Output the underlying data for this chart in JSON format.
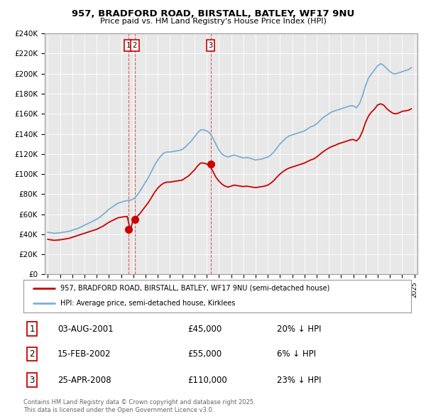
{
  "title": "957, BRADFORD ROAD, BIRSTALL, BATLEY, WF17 9NU",
  "subtitle": "Price paid vs. HM Land Registry's House Price Index (HPI)",
  "ylim": [
    0,
    240000
  ],
  "yticks": [
    0,
    20000,
    40000,
    60000,
    80000,
    100000,
    120000,
    140000,
    160000,
    180000,
    200000,
    220000,
    240000
  ],
  "ytick_labels": [
    "£0",
    "£20K",
    "£40K",
    "£60K",
    "£80K",
    "£100K",
    "£120K",
    "£140K",
    "£160K",
    "£180K",
    "£200K",
    "£220K",
    "£240K"
  ],
  "sale_dates_num": [
    2001.585,
    2002.12,
    2008.32
  ],
  "sale_prices": [
    45000,
    55000,
    110000
  ],
  "sale_labels": [
    "1",
    "2",
    "3"
  ],
  "legend_line1": "957, BRADFORD ROAD, BIRSTALL, BATLEY, WF17 9NU (semi-detached house)",
  "legend_line2": "HPI: Average price, semi-detached house, Kirklees",
  "table_data": [
    [
      "1",
      "03-AUG-2001",
      "£45,000",
      "20% ↓ HPI"
    ],
    [
      "2",
      "15-FEB-2002",
      "£55,000",
      "6% ↓ HPI"
    ],
    [
      "3",
      "25-APR-2008",
      "£110,000",
      "23% ↓ HPI"
    ]
  ],
  "footer": "Contains HM Land Registry data © Crown copyright and database right 2025.\nThis data is licensed under the Open Government Licence v3.0.",
  "red_color": "#cc0000",
  "blue_color": "#7ab0d4",
  "background_color": "#ffffff",
  "chart_bg": "#e8e8e8",
  "grid_color": "#ffffff",
  "hpi_x": [
    1995.0,
    1995.25,
    1995.5,
    1995.75,
    1996.0,
    1996.25,
    1996.5,
    1996.75,
    1997.0,
    1997.25,
    1997.5,
    1997.75,
    1998.0,
    1998.25,
    1998.5,
    1998.75,
    1999.0,
    1999.25,
    1999.5,
    1999.75,
    2000.0,
    2000.25,
    2000.5,
    2000.75,
    2001.0,
    2001.25,
    2001.5,
    2001.75,
    2002.0,
    2002.25,
    2002.5,
    2002.75,
    2003.0,
    2003.25,
    2003.5,
    2003.75,
    2004.0,
    2004.25,
    2004.5,
    2004.75,
    2005.0,
    2005.25,
    2005.5,
    2005.75,
    2006.0,
    2006.25,
    2006.5,
    2006.75,
    2007.0,
    2007.25,
    2007.5,
    2007.75,
    2008.0,
    2008.25,
    2008.5,
    2008.75,
    2009.0,
    2009.25,
    2009.5,
    2009.75,
    2010.0,
    2010.25,
    2010.5,
    2010.75,
    2011.0,
    2011.25,
    2011.5,
    2011.75,
    2012.0,
    2012.25,
    2012.5,
    2012.75,
    2013.0,
    2013.25,
    2013.5,
    2013.75,
    2014.0,
    2014.25,
    2014.5,
    2014.75,
    2015.0,
    2015.25,
    2015.5,
    2015.75,
    2016.0,
    2016.25,
    2016.5,
    2016.75,
    2017.0,
    2017.25,
    2017.5,
    2017.75,
    2018.0,
    2018.25,
    2018.5,
    2018.75,
    2019.0,
    2019.25,
    2019.5,
    2019.75,
    2020.0,
    2020.25,
    2020.5,
    2020.75,
    2021.0,
    2021.25,
    2021.5,
    2021.75,
    2022.0,
    2022.25,
    2022.5,
    2022.75,
    2023.0,
    2023.25,
    2023.5,
    2023.75,
    2024.0,
    2024.25,
    2024.5,
    2024.75
  ],
  "hpi_y": [
    42000,
    41500,
    41000,
    41200,
    41500,
    42000,
    42500,
    43000,
    44000,
    45000,
    46000,
    47500,
    49000,
    50500,
    52000,
    53500,
    55000,
    57000,
    59500,
    62000,
    65000,
    67000,
    69000,
    71000,
    72000,
    73000,
    73500,
    74000,
    75000,
    78000,
    82000,
    87000,
    92000,
    97000,
    103000,
    109000,
    114000,
    118000,
    121000,
    122000,
    122000,
    122500,
    123000,
    123500,
    124500,
    127000,
    130000,
    133000,
    137000,
    141000,
    144000,
    144000,
    143000,
    141000,
    136000,
    130000,
    124000,
    120000,
    118000,
    117000,
    118000,
    119000,
    118000,
    117000,
    116000,
    116500,
    116000,
    115000,
    114000,
    114500,
    115000,
    116000,
    117000,
    119000,
    122000,
    126000,
    130000,
    133000,
    136000,
    138000,
    139000,
    140000,
    141000,
    142000,
    143000,
    145000,
    147000,
    148000,
    150000,
    153000,
    156000,
    158000,
    160000,
    162000,
    163000,
    164000,
    165000,
    166000,
    167000,
    168000,
    168000,
    166000,
    170000,
    178000,
    188000,
    196000,
    200000,
    204000,
    208000,
    210000,
    208000,
    205000,
    202000,
    200000,
    200000,
    201000,
    202000,
    203000,
    204000,
    206000
  ],
  "red_x": [
    1995.0,
    1995.25,
    1995.5,
    1995.75,
    1996.0,
    1996.25,
    1996.5,
    1996.75,
    1997.0,
    1997.25,
    1997.5,
    1997.75,
    1998.0,
    1998.25,
    1998.5,
    1998.75,
    1999.0,
    1999.25,
    1999.5,
    1999.75,
    2000.0,
    2000.25,
    2000.5,
    2000.75,
    2001.0,
    2001.25,
    2001.5,
    2001.75,
    2002.0,
    2002.25,
    2002.5,
    2002.75,
    2003.0,
    2003.25,
    2003.5,
    2003.75,
    2004.0,
    2004.25,
    2004.5,
    2004.75,
    2005.0,
    2005.25,
    2005.5,
    2005.75,
    2006.0,
    2006.25,
    2006.5,
    2006.75,
    2007.0,
    2007.25,
    2007.5,
    2007.75,
    2008.0,
    2008.25,
    2008.5,
    2008.75,
    2009.0,
    2009.25,
    2009.5,
    2009.75,
    2010.0,
    2010.25,
    2010.5,
    2010.75,
    2011.0,
    2011.25,
    2011.5,
    2011.75,
    2012.0,
    2012.25,
    2012.5,
    2012.75,
    2013.0,
    2013.25,
    2013.5,
    2013.75,
    2014.0,
    2014.25,
    2014.5,
    2014.75,
    2015.0,
    2015.25,
    2015.5,
    2015.75,
    2016.0,
    2016.25,
    2016.5,
    2016.75,
    2017.0,
    2017.25,
    2017.5,
    2017.75,
    2018.0,
    2018.25,
    2018.5,
    2018.75,
    2019.0,
    2019.25,
    2019.5,
    2019.75,
    2020.0,
    2020.25,
    2020.5,
    2020.75,
    2021.0,
    2021.25,
    2021.5,
    2021.75,
    2022.0,
    2022.25,
    2022.5,
    2022.75,
    2023.0,
    2023.25,
    2023.5,
    2023.75,
    2024.0,
    2024.25,
    2024.5,
    2024.75
  ],
  "red_y": [
    35000,
    34500,
    34000,
    34200,
    34500,
    35000,
    35500,
    36000,
    37000,
    38000,
    39000,
    40000,
    41000,
    42000,
    43000,
    44000,
    45000,
    46500,
    48000,
    50000,
    52000,
    53500,
    55000,
    56500,
    57000,
    57500,
    57800,
    44000,
    55000,
    57000,
    60000,
    64000,
    68000,
    72000,
    77000,
    82000,
    86000,
    89000,
    91000,
    92000,
    92000,
    92500,
    93000,
    93500,
    94000,
    96000,
    98000,
    101000,
    104000,
    108000,
    111000,
    111000,
    110000,
    108000,
    103000,
    97000,
    93000,
    90000,
    88000,
    87000,
    88000,
    89000,
    88500,
    88000,
    87500,
    88000,
    87500,
    87000,
    86500,
    87000,
    87500,
    88000,
    89000,
    91000,
    93500,
    97000,
    100000,
    102500,
    104500,
    106000,
    107000,
    108000,
    109000,
    110000,
    111000,
    112500,
    114000,
    115000,
    117000,
    119500,
    122000,
    124000,
    126000,
    127500,
    128500,
    130000,
    131000,
    132000,
    133000,
    134000,
    134500,
    133000,
    136000,
    142500,
    151500,
    158000,
    162000,
    165000,
    169000,
    170000,
    168500,
    165000,
    162500,
    160500,
    160000,
    161000,
    162500,
    163000,
    163500,
    165000
  ]
}
